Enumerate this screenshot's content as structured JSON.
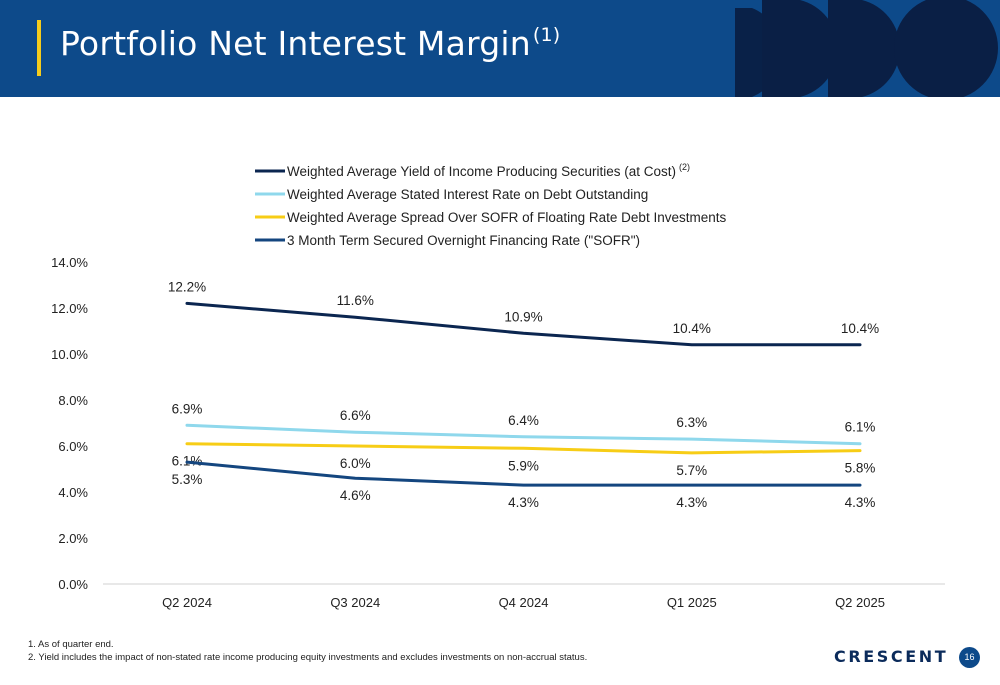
{
  "header": {
    "title": "Portfolio Net Interest Margin",
    "title_superscript": "(1)"
  },
  "chart_data": {
    "type": "line",
    "categories": [
      "Q2 2024",
      "Q3 2024",
      "Q4 2024",
      "Q1 2025",
      "Q2 2025"
    ],
    "ylim": [
      0,
      14
    ],
    "y_ticks": [
      0,
      2,
      4,
      6,
      8,
      10,
      12,
      14
    ],
    "y_tick_labels": [
      "0.0%",
      "2.0%",
      "4.0%",
      "6.0%",
      "8.0%",
      "10.0%",
      "12.0%",
      "14.0%"
    ],
    "grid": false,
    "legend_position": "top",
    "series": [
      {
        "name": "Weighted Average Yield of Income Producing Securities (at Cost)",
        "name_superscript": "(2)",
        "color": "#0b2650",
        "values": [
          12.2,
          11.6,
          10.9,
          10.4,
          10.4
        ],
        "labels": [
          "12.2%",
          "11.6%",
          "10.9%",
          "10.4%",
          "10.4%"
        ],
        "label_placement": "above"
      },
      {
        "name": "Weighted Average Stated Interest Rate on Debt Outstanding",
        "color": "#8fd8ec",
        "values": [
          6.9,
          6.6,
          6.4,
          6.3,
          6.1
        ],
        "labels": [
          "6.9%",
          "6.6%",
          "6.4%",
          "6.3%",
          "6.1%"
        ],
        "label_placement": "above"
      },
      {
        "name": "Weighted Average Spread Over SOFR of Floating Rate Debt Investments",
        "color": "#f7cd16",
        "values": [
          6.1,
          6.0,
          5.9,
          5.7,
          5.8
        ],
        "labels": [
          "6.1%",
          "6.0%",
          "5.9%",
          "5.7%",
          "5.8%"
        ],
        "label_placement": "below"
      },
      {
        "name": "3 Month Term Secured Overnight Financing Rate (\"SOFR\")",
        "color": "#14467f",
        "values": [
          5.3,
          4.6,
          4.3,
          4.3,
          4.3
        ],
        "labels": [
          "5.3%",
          "4.6%",
          "4.3%",
          "4.3%",
          "4.3%"
        ],
        "label_placement": "below"
      }
    ]
  },
  "footnotes": [
    "1.  As of quarter end.",
    "2.  Yield includes the impact of non-stated rate income producing equity investments and excludes investments on non-accrual status."
  ],
  "footer": {
    "logo_text": "CRESCENT",
    "page_number": "16"
  },
  "colors": {
    "header_bg": "#0d4a8a",
    "accent_bar": "#f5cc1c",
    "deco_dark": "#0a1f45"
  },
  "icons": {
    "header_decoration": "crescent-shapes-icon"
  }
}
